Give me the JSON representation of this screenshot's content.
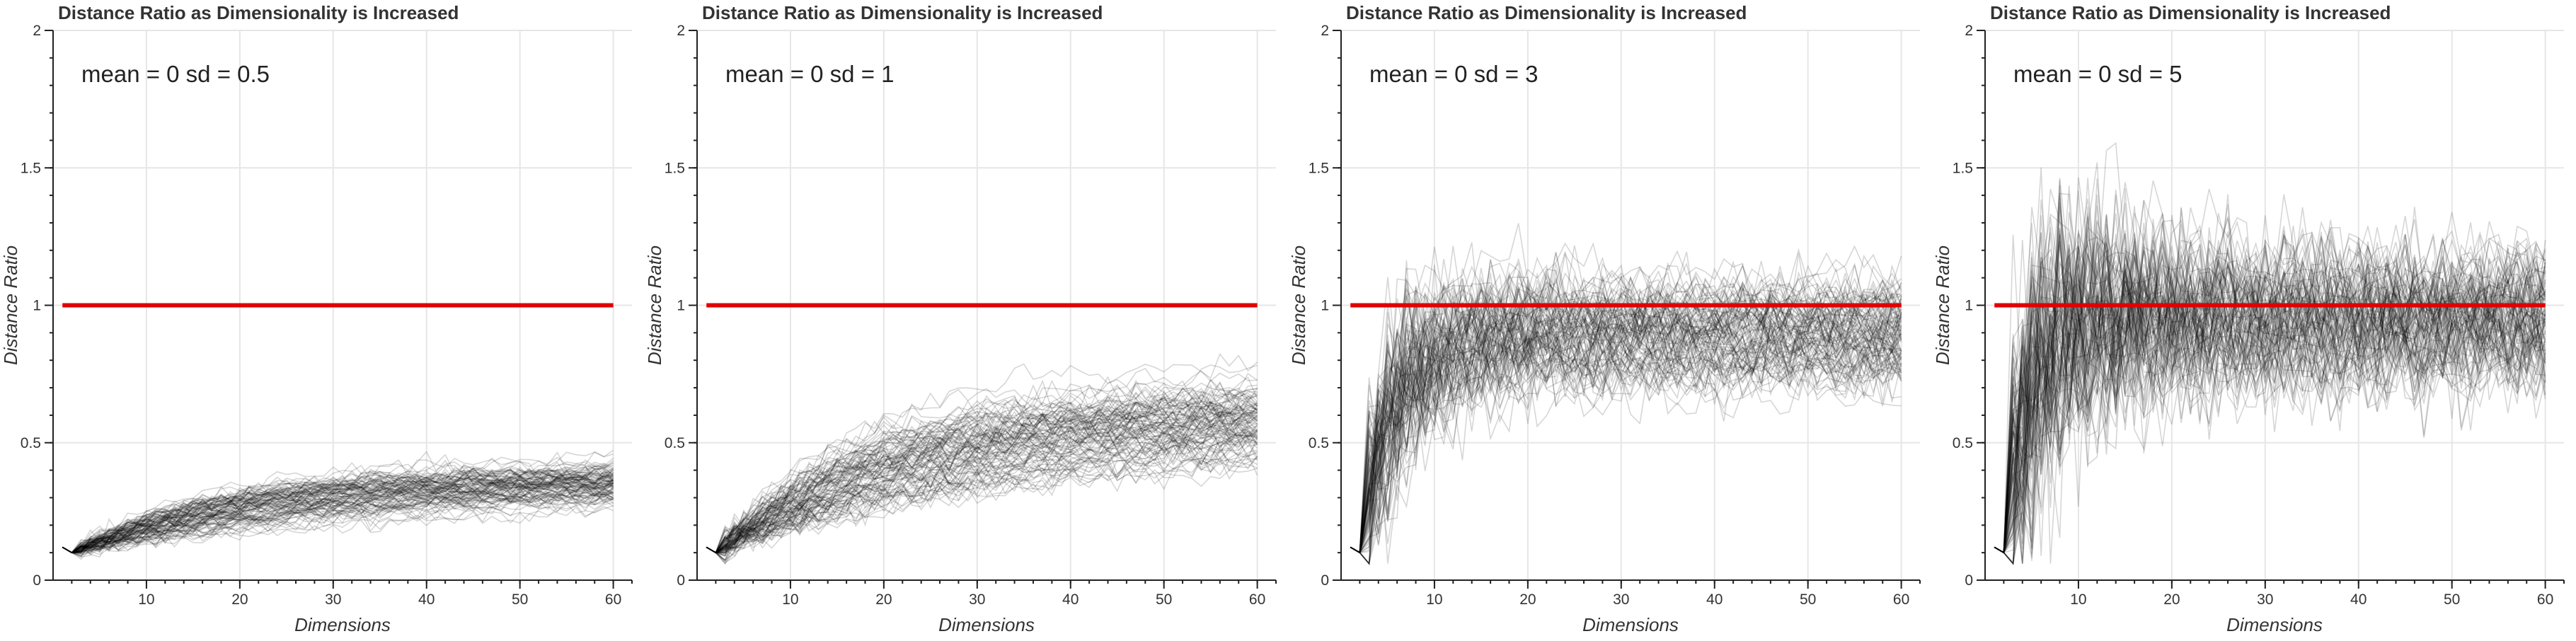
{
  "chart_data": [
    {
      "type": "line",
      "title": "Distance Ratio as Dimensionality is Increased",
      "annotation": "mean = 0  sd = 0.5",
      "mean": 0,
      "sd": 0.5,
      "xlabel": "Dimensions",
      "ylabel": "Distance Ratio",
      "xlim": [
        0,
        62
      ],
      "ylim": [
        0,
        2
      ],
      "xticks": [
        "10",
        "20",
        "30",
        "40",
        "50",
        "60"
      ],
      "yticks": [
        "0",
        "0.5",
        "1",
        "1.5",
        "2"
      ],
      "reference_line": {
        "y": 1,
        "x": [
          1,
          60
        ],
        "color": "#e00000"
      },
      "n_series": 100,
      "series_summary": {
        "x_start": 1,
        "x_end": 60,
        "start_value": 0.12,
        "min_value": 0.1,
        "end_median": 0.37,
        "end_spread": 0.05,
        "noise": 0.015
      }
    },
    {
      "type": "line",
      "title": "Distance Ratio as Dimensionality is Increased",
      "annotation": "mean = 0  sd = 1",
      "mean": 0,
      "sd": 1,
      "xlabel": "Dimensions",
      "ylabel": "Distance Ratio",
      "xlim": [
        0,
        62
      ],
      "ylim": [
        0,
        2
      ],
      "xticks": [
        "10",
        "20",
        "30",
        "40",
        "50",
        "60"
      ],
      "yticks": [
        "0",
        "0.5",
        "1",
        "1.5",
        "2"
      ],
      "reference_line": {
        "y": 1,
        "x": [
          1,
          60
        ],
        "color": "#e00000"
      },
      "n_series": 100,
      "series_summary": {
        "x_start": 1,
        "x_end": 60,
        "start_value": 0.12,
        "min_value": 0.1,
        "end_median": 0.63,
        "end_spread": 0.09,
        "noise": 0.025
      }
    },
    {
      "type": "line",
      "title": "Distance Ratio as Dimensionality is Increased",
      "annotation": "mean = 0  sd = 3",
      "mean": 0,
      "sd": 3,
      "xlabel": "Dimensions",
      "ylabel": "Distance Ratio",
      "xlim": [
        0,
        62
      ],
      "ylim": [
        0,
        2
      ],
      "xticks": [
        "10",
        "20",
        "30",
        "40",
        "50",
        "60"
      ],
      "yticks": [
        "0",
        "0.5",
        "1",
        "1.5",
        "2"
      ],
      "reference_line": {
        "y": 1,
        "x": [
          1,
          60
        ],
        "color": "#e00000"
      },
      "n_series": 100,
      "series_summary": {
        "x_start": 1,
        "x_end": 60,
        "start_value": 0.12,
        "min_value": 0.1,
        "end_median": 0.9,
        "end_spread": 0.12,
        "noise": 0.05
      }
    },
    {
      "type": "line",
      "title": "Distance Ratio as Dimensionality is Increased",
      "annotation": "mean = 0  sd = 5",
      "mean": 0,
      "sd": 5,
      "xlabel": "Dimensions",
      "ylabel": "Distance Ratio",
      "xlim": [
        0,
        62
      ],
      "ylim": [
        0,
        2
      ],
      "xticks": [
        "10",
        "20",
        "30",
        "40",
        "50",
        "60"
      ],
      "yticks": [
        "0",
        "0.5",
        "1",
        "1.5",
        "2"
      ],
      "reference_line": {
        "y": 1,
        "x": [
          1,
          60
        ],
        "color": "#e00000"
      },
      "n_series": 100,
      "series_summary": {
        "x_start": 1,
        "x_end": 60,
        "start_value": 0.12,
        "min_value": 0.1,
        "end_median": 0.95,
        "end_spread": 0.14,
        "noise": 0.09
      }
    }
  ]
}
